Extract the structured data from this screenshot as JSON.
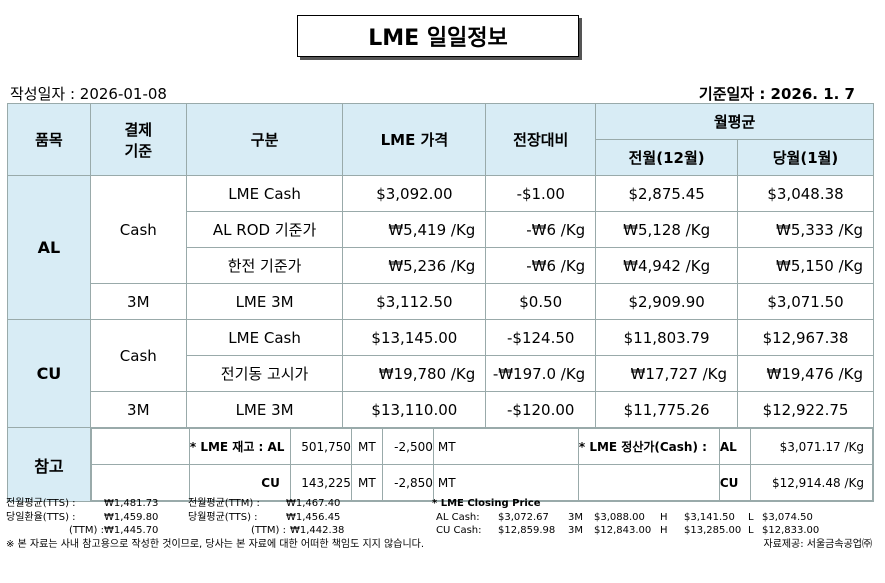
{
  "title": "LME 일일정보",
  "written_date_label": "작성일자 : 2026-01-08",
  "base_date_label": "기준일자 : 2026.   1.    7",
  "headers": {
    "item": "품목",
    "settle_1": "결제",
    "settle_2": "기준",
    "category": "구분",
    "lme_price": "LME 가격",
    "change": "전장대비",
    "monthly_avg": "월평균",
    "prev_month": "전월(12월)",
    "this_month": "당월(1월)"
  },
  "al": {
    "label": "AL",
    "cash": "Cash",
    "m3": "3M",
    "rows": [
      {
        "name": "LME Cash",
        "price": "$3,092.00",
        "change": "-$1.00",
        "prev": "$2,875.45",
        "cur": "$3,048.38"
      },
      {
        "name": "AL ROD 기준가",
        "price": "₩5,419 /Kg",
        "change": "-₩6 /Kg",
        "prev": "₩5,128 /Kg",
        "cur": "₩5,333 /Kg"
      },
      {
        "name": "한전 기준가",
        "price": "₩5,236 /Kg",
        "change": "-₩6 /Kg",
        "prev": "₩4,942 /Kg",
        "cur": "₩5,150 /Kg"
      },
      {
        "name": "LME  3M",
        "price": "$3,112.50",
        "change": "$0.50",
        "prev": "$2,909.90",
        "cur": "$3,071.50"
      }
    ]
  },
  "cu": {
    "label": "CU",
    "cash": "Cash",
    "m3": "3M",
    "rows": [
      {
        "name": "LME Cash",
        "price": "$13,145.00",
        "change": "-$124.50",
        "prev": "$11,803.79",
        "cur": "$12,967.38"
      },
      {
        "name": "전기동 고시가",
        "price": "₩19,780 /Kg",
        "change": "-₩197.0  /Kg",
        "prev": "₩17,727 /Kg",
        "cur": "₩19,476 /Kg"
      },
      {
        "name": "LME 3M",
        "price": "$13,110.00",
        "change": "-$120.00",
        "prev": "$11,775.26",
        "cur": "$12,922.75"
      }
    ]
  },
  "reference": {
    "label": "참고",
    "stock_label": "* LME 재고 : AL",
    "al_stock": "501,750",
    "al_unit": "MT",
    "al_change": "-2,500",
    "al_change_unit": "MT",
    "cu_label": "CU",
    "cu_stock": "143,225",
    "cu_unit": "MT",
    "cu_change": "-2,850",
    "cu_change_unit": "MT",
    "settle_label": "* LME 정산가(Cash) :",
    "al_settle_label": "AL",
    "al_settle": "$3,071.17 /Kg",
    "cu_settle_label": "CU",
    "cu_settle": "$12,914.48 /Kg"
  },
  "footer": {
    "prev_tts_label": "전월평균(TTS) :",
    "prev_tts": "₩1,481.73",
    "prev_ttm_label": "전월평균(TTM) :",
    "prev_ttm": "₩1,467.40",
    "closing_label": "* LME Closing Price",
    "day_tts_label": "당일환율(TTS) :",
    "day_tts": "₩1,459.80",
    "cur_ttm_label": "당월평균(TTS) :",
    "cur_ttm": "₩1,456.45",
    "al_cash_label": "AL  Cash:",
    "al_cash": "$3,072.67",
    "al_3m_label": "3M",
    "al_3m": "$3,088.00",
    "al_h_label": "H",
    "al_h": "$3,141.50",
    "al_l_label": "L",
    "al_l": "$3,074.50",
    "day_ttm_label": "(TTM) :",
    "day_ttm": "₩1,445.70",
    "cur_ttm2_label": "(TTM) :",
    "cur_ttm2": "₩1,442.38",
    "cu_cash_label": "CU  Cash:",
    "cu_cash": "$12,859.98",
    "cu_3m_label": "3M",
    "cu_3m": "$12,843.00",
    "cu_h_label": "H",
    "cu_h": "$13,285.00",
    "cu_l_label": "L",
    "cu_l": "$12,833.00",
    "disclaimer": "※ 본 자료는 사내 참고용으로 작성한 것이므로, 당사는 본 자료에 대한 어떠한 책임도 지지 않습니다.",
    "source": "자료제공: 서울금속공업㈜"
  }
}
